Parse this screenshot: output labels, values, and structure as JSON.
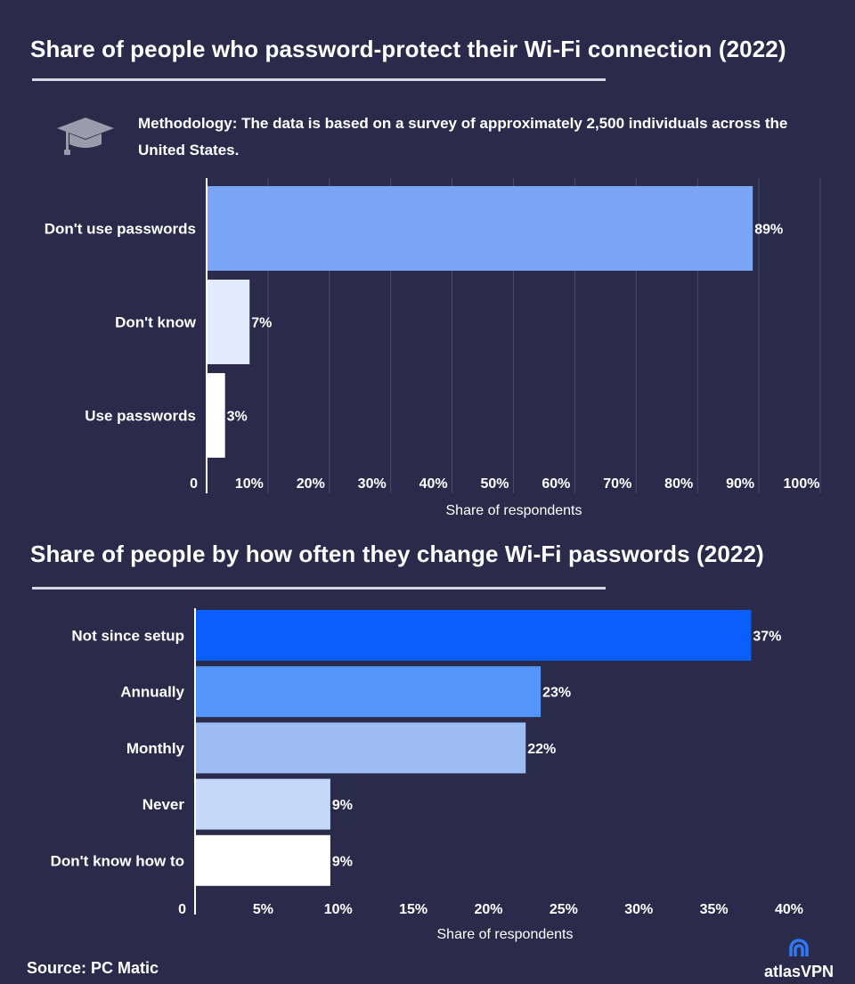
{
  "chart_data": [
    {
      "type": "bar",
      "orientation": "horizontal",
      "title": "Share of people who password-protect their Wi-Fi connection (2022)",
      "methodology": "Methodology: The data is based on a survey of approximately 2,500 individuals across the United States.",
      "categories": [
        "Don't use passwords",
        "Don't know",
        "Use passwords"
      ],
      "values": [
        89,
        7,
        3
      ],
      "value_labels": [
        "89%",
        "7%",
        "3%"
      ],
      "colors": [
        "#7aa4f4",
        "#e2ebfc",
        "#ffffff"
      ],
      "xlabel": "Share of respondents",
      "xlim": [
        0,
        100
      ],
      "ticks": [
        0,
        10,
        20,
        30,
        40,
        50,
        60,
        70,
        80,
        90,
        100
      ],
      "tick_labels": [
        "0",
        "10%",
        "20%",
        "30%",
        "40%",
        "50%",
        "60%",
        "70%",
        "80%",
        "90%",
        "100%"
      ],
      "grid": true
    },
    {
      "type": "bar",
      "orientation": "horizontal",
      "title": "Share of people by how often they change Wi-Fi passwords (2022)",
      "categories": [
        "Not since setup",
        "Annually",
        "Monthly",
        "Never",
        "Don't know how to"
      ],
      "values": [
        37,
        23,
        22,
        9,
        9
      ],
      "value_labels": [
        "37%",
        "23%",
        "22%",
        "9%",
        "9%"
      ],
      "colors": [
        "#0a5efc",
        "#5594f8",
        "#9dbcf5",
        "#c6d8fa",
        "#ffffff"
      ],
      "xlabel": "Share of respondents",
      "xlim": [
        0,
        40
      ],
      "ticks": [
        0,
        5,
        10,
        15,
        20,
        25,
        30,
        35,
        40
      ],
      "tick_labels": [
        "0",
        "5%",
        "10%",
        "15%",
        "20%",
        "25%",
        "30%",
        "35%",
        "40%"
      ],
      "grid": false
    }
  ],
  "source": "Source: PC Matic",
  "brand": "atlasVPN",
  "icons": {
    "methodology": "graduation-cap-icon",
    "brand": "atlasvpn-logo-icon"
  }
}
